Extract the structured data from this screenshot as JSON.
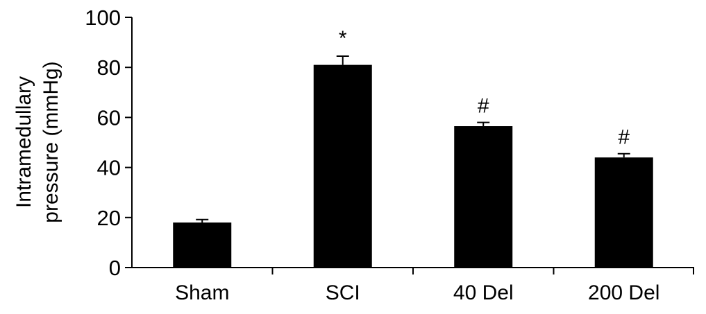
{
  "chart_data": {
    "type": "bar",
    "categories": [
      "Sham",
      "SCI",
      "40 Del",
      "200 Del"
    ],
    "values": [
      18,
      81,
      56.5,
      44
    ],
    "errors": [
      1.2,
      3.5,
      1.5,
      1.5
    ],
    "annotations": [
      "",
      "*",
      "#",
      "#"
    ],
    "ylabel_lines": [
      "Intramedullary",
      "pressure (mmHg)"
    ],
    "ylim": [
      0,
      100
    ],
    "yticks": [
      0,
      20,
      40,
      60,
      80,
      100
    ],
    "grid": false,
    "legend": "none",
    "bar_color": "#000000"
  }
}
